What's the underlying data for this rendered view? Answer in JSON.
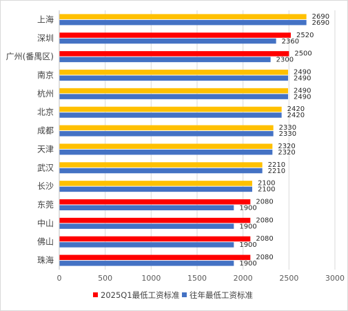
{
  "chart_data": {
    "type": "bar",
    "orientation": "horizontal",
    "categories": [
      "上海",
      "深圳",
      "广州(番禺区)",
      "南京",
      "杭州",
      "北京",
      "成都",
      "天津",
      "武汉",
      "长沙",
      "东莞",
      "中山",
      "佛山",
      "珠海"
    ],
    "series": [
      {
        "name": "2025Q1最低工资标准",
        "values": [
          2690,
          2520,
          2500,
          2490,
          2490,
          2420,
          2330,
          2320,
          2210,
          2100,
          2080,
          2080,
          2080,
          2080
        ],
        "colors": [
          "#FFC000",
          "#FF0000",
          "#FF0000",
          "#FFC000",
          "#FFC000",
          "#FFC000",
          "#FFC000",
          "#FFC000",
          "#FFC000",
          "#FFC000",
          "#FF0000",
          "#FF0000",
          "#FF0000",
          "#FF0000"
        ]
      },
      {
        "name": "往年最低工资标准",
        "values": [
          2690,
          2360,
          2300,
          2490,
          2490,
          2420,
          2330,
          2320,
          2210,
          2100,
          1900,
          1900,
          1900,
          1900
        ],
        "color": "#4472C4"
      }
    ],
    "x_ticks": [
      "0",
      "500",
      "1000",
      "1500",
      "2000",
      "2500",
      "3000"
    ],
    "xlim": [
      0,
      3000
    ],
    "grid": true,
    "legend_position": "bottom",
    "legend_marker_colors": [
      "#FF0000",
      "#4472C4"
    ],
    "axis_color": "#bfbfbf",
    "grid_color": "#d9d9d9"
  }
}
